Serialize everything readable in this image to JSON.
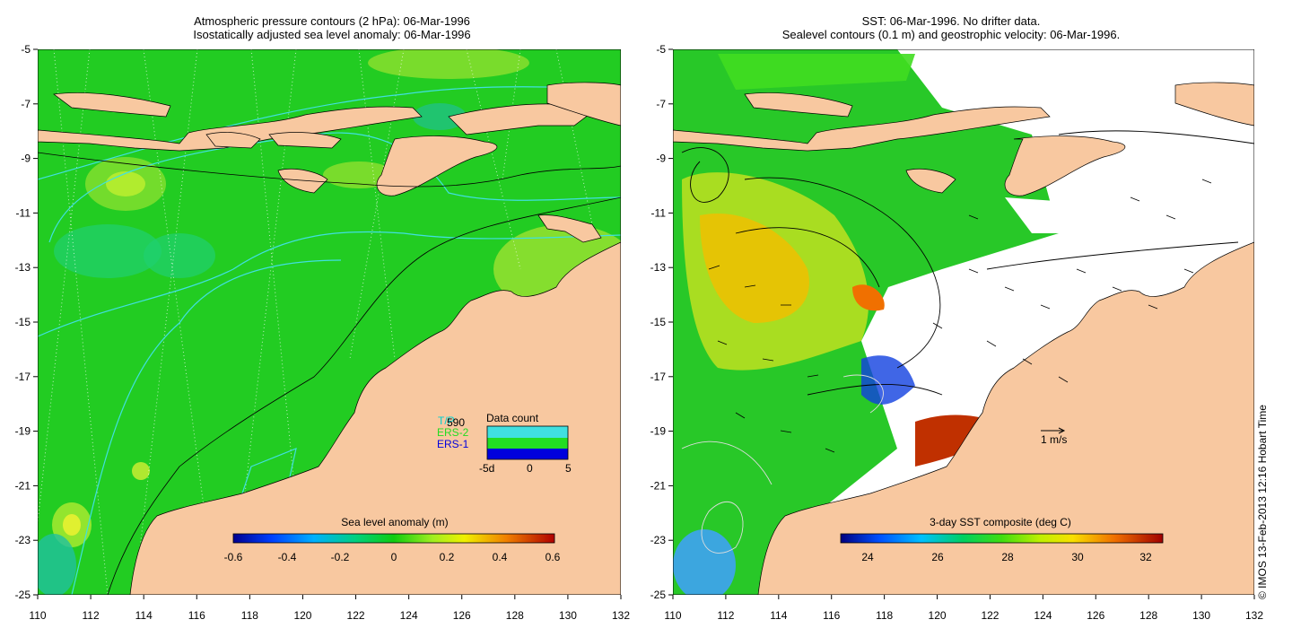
{
  "left_panel": {
    "title_line1": "Atmospheric pressure contours (2 hPa): 06-Mar-1996",
    "title_line2": "Isostatically adjusted sea level anomaly: 06-Mar-1996",
    "colorbar_title": "Sea level anomaly (m)",
    "colorbar_ticks": [
      "-0.6",
      "-0.4",
      "-0.2",
      "0",
      "0.2",
      "0.4",
      "0.6"
    ],
    "legend": {
      "missions": [
        "T/P",
        "ERS-2",
        "ERS-1"
      ],
      "mission_colors": [
        "#00d0d0",
        "#22dd22",
        "#0000dd"
      ],
      "count_label": "590",
      "title": "Data count",
      "x_ticks": [
        "-5d",
        "0",
        "5"
      ]
    }
  },
  "right_panel": {
    "title_line1": "SST: 06-Mar-1996. No drifter data.",
    "title_line2": "Sealevel contours (0.1 m) and geostrophic velocity: 06-Mar-1996.",
    "colorbar_title": "3-day SST composite (deg C)",
    "colorbar_ticks": [
      "24",
      "26",
      "28",
      "30",
      "32"
    ],
    "velocity_scale_label": "1 m/s"
  },
  "axes": {
    "x_ticks": [
      "110",
      "112",
      "114",
      "116",
      "118",
      "120",
      "122",
      "124",
      "126",
      "128",
      "130",
      "132"
    ],
    "y_ticks": [
      "-5",
      "-7",
      "-9",
      "-11",
      "-13",
      "-15",
      "-17",
      "-19",
      "-21",
      "-23",
      "-25"
    ]
  },
  "colors": {
    "land": "#f8c8a0",
    "ocean_green": "#22cc22",
    "contour_cyan": "#40e0e0"
  },
  "credit": "© IMOS 13-Feb-2013 12:16 Hobart Time"
}
